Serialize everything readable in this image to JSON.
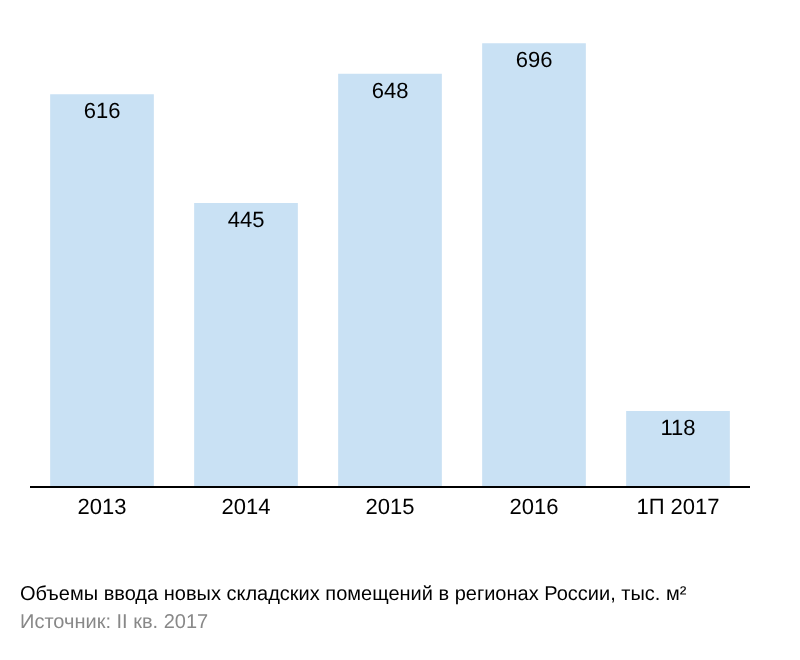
{
  "chart_data": {
    "type": "bar",
    "title": "Объемы ввода новых складских помещений в регионах России, тыс. м²",
    "categories": [
      "2013",
      "2014",
      "2015",
      "2016",
      "1П 2017"
    ],
    "values": [
      616,
      445,
      648,
      696,
      118
    ],
    "color": "#c9e1f4",
    "data_labels": true,
    "annotations": [
      "Источник: II кв. 2017"
    ]
  }
}
